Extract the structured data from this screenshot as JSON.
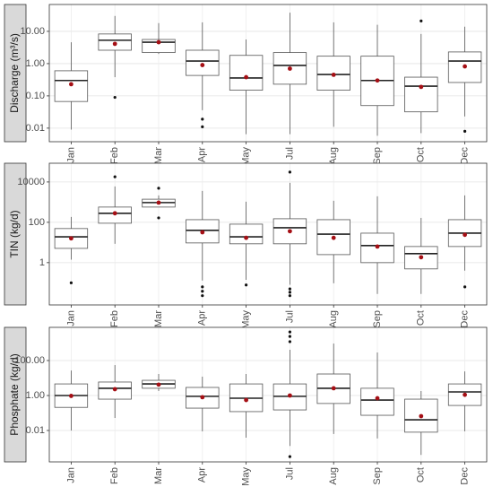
{
  "chart_data": [
    {
      "type": "box",
      "y_label": "Discharge (m³/s)",
      "log_scale": true,
      "grid": true,
      "box_color": "#555555",
      "mean_color": "#a50f15",
      "ylim": [
        0.0038,
        68
      ],
      "yticks": [
        0.01,
        {
          "value": 0.1,
          "label": "0.10"
        },
        {
          "value": 1,
          "label": "1.00"
        },
        {
          "value": 10,
          "label": "10.00"
        }
      ],
      "categories": [
        "Jan",
        "Feb",
        "Mar",
        "Apr",
        "May",
        "Jul",
        "Aug",
        "Sep",
        "Oct",
        "Dec"
      ],
      "boxes": [
        {
          "whislo": 0.009,
          "q1": 0.067,
          "med": 0.3,
          "q3": 0.6,
          "whishi": 4.6,
          "mean": 0.23
        },
        {
          "whislo": 0.38,
          "q1": 2.6,
          "med": 5.3,
          "q3": 8.3,
          "whishi": 30,
          "mean": 4.1,
          "fliers": [
            0.09
          ]
        },
        {
          "whislo": 2,
          "q1": 2.2,
          "med": 4.6,
          "q3": 5.6,
          "whishi": 18,
          "mean": 4.6
        },
        {
          "whislo": 0.036,
          "q1": 0.43,
          "med": 1.2,
          "q3": 2.6,
          "whishi": 19,
          "mean": 0.9,
          "fliers": [
            0.019,
            0.011
          ]
        },
        {
          "whislo": 0.0065,
          "q1": 0.15,
          "med": 0.36,
          "q3": 1.8,
          "whishi": 5.6,
          "mean": 0.38
        },
        {
          "whislo": 0.0065,
          "q1": 0.23,
          "med": 0.88,
          "q3": 2.2,
          "whishi": 38,
          "mean": 0.7
        },
        {
          "whislo": 0.011,
          "q1": 0.15,
          "med": 0.46,
          "q3": 1.7,
          "whishi": 19,
          "mean": 0.45
        },
        {
          "whislo": 0.0058,
          "q1": 0.05,
          "med": 0.3,
          "q3": 1.7,
          "whishi": 16,
          "mean": 0.3
        },
        {
          "whislo": 0.007,
          "q1": 0.032,
          "med": 0.2,
          "q3": 0.38,
          "whishi": 8.3,
          "mean": 0.19,
          "fliers": [
            21
          ]
        },
        {
          "whislo": 0.023,
          "q1": 0.26,
          "med": 1.2,
          "q3": 2.3,
          "whishi": 14,
          "mean": 0.82,
          "fliers": [
            0.008
          ]
        }
      ]
    },
    {
      "type": "box",
      "y_label": "TIN (kg/d)",
      "log_scale": true,
      "grid": true,
      "box_color": "#555555",
      "mean_color": "#a50f15",
      "ylim": [
        0.008,
        85000
      ],
      "yticks": [
        1,
        100,
        10000
      ],
      "categories": [
        "Jan",
        "Feb",
        "Mar",
        "Apr",
        "May",
        "Jul",
        "Aug",
        "Sep",
        "Oct",
        "Dec"
      ],
      "boxes": [
        {
          "whislo": 1.4,
          "q1": 5.1,
          "med": 19,
          "q3": 49,
          "whishi": 185,
          "mean": 16,
          "fliers": [
            0.1
          ]
        },
        {
          "whislo": 8.6,
          "q1": 90,
          "med": 280,
          "q3": 570,
          "whishi": 6000,
          "mean": 280,
          "fliers": [
            18000
          ]
        },
        {
          "whislo": 570,
          "q1": 570,
          "med": 950,
          "q3": 1400,
          "whishi": 2150,
          "mean": 950,
          "fliers": [
            4900,
            166
          ]
        },
        {
          "whislo": 0.13,
          "q1": 9.5,
          "med": 40,
          "q3": 135,
          "whishi": 3600,
          "mean": 32,
          "fliers": [
            0.063,
            0.038,
            0.023
          ]
        },
        {
          "whislo": 0.14,
          "q1": 8.6,
          "med": 19,
          "q3": 81,
          "whishi": 1050,
          "mean": 17,
          "fliers": [
            0.078
          ]
        },
        {
          "whislo": 0.08,
          "q1": 8.6,
          "med": 54,
          "q3": 150,
          "whishi": 9100,
          "mean": 36,
          "fliers": [
            31000,
            0.05,
            0.034,
            0.023
          ]
        },
        {
          "whislo": 0.095,
          "q1": 2.5,
          "med": 26,
          "q3": 135,
          "whishi": 1170,
          "mean": 17
        },
        {
          "whislo": 0.028,
          "q1": 1,
          "med": 7,
          "q3": 29,
          "whishi": 1950,
          "mean": 6.3
        },
        {
          "whislo": 0.028,
          "q1": 0.49,
          "med": 2.8,
          "q3": 6.3,
          "whishi": 166,
          "mean": 1.85
        },
        {
          "whislo": 0.4,
          "q1": 6.3,
          "med": 29,
          "q3": 135,
          "whishi": 2150,
          "mean": 24,
          "fliers": [
            0.063
          ]
        }
      ]
    },
    {
      "type": "box",
      "y_label": "Phosphate (kg/d)",
      "log_scale": true,
      "grid": true,
      "box_color": "#555555",
      "mean_color": "#a50f15",
      "ylim": [
        0.00016,
        7900
      ],
      "yticks": [
        0.01,
        {
          "value": 1,
          "label": "1.00"
        },
        {
          "value": 100,
          "label": "100.00"
        }
      ],
      "categories": [
        "Jan",
        "Feb",
        "Mar",
        "Apr",
        "May",
        "Jul",
        "Aug",
        "Sep",
        "Oct",
        "Dec"
      ],
      "boxes": [
        {
          "whislo": 0.01,
          "q1": 0.21,
          "med": 1,
          "q3": 4.6,
          "whishi": 27,
          "mean": 0.95
        },
        {
          "whislo": 0.052,
          "q1": 0.62,
          "med": 2.6,
          "q3": 5.9,
          "whishi": 55,
          "mean": 2.3
        },
        {
          "whislo": 1.8,
          "q1": 2.6,
          "med": 4.6,
          "q3": 7.4,
          "whishi": 17,
          "mean": 4.2
        },
        {
          "whislo": 0.009,
          "q1": 0.19,
          "med": 0.9,
          "q3": 2.9,
          "whishi": 12,
          "mean": 0.8
        },
        {
          "whislo": 0.0039,
          "q1": 0.12,
          "med": 0.7,
          "q3": 4.6,
          "whishi": 17,
          "mean": 0.55
        },
        {
          "whislo": 0.0013,
          "q1": 0.15,
          "med": 0.9,
          "q3": 4.6,
          "whishi": 410,
          "mean": 1,
          "fliers": [
            2400,
            4300,
            1200,
            0.00032
          ]
        },
        {
          "whislo": 0.0063,
          "q1": 0.35,
          "med": 2.6,
          "q3": 17,
          "whishi": 940,
          "mean": 2.6
        },
        {
          "whislo": 0.0035,
          "q1": 0.074,
          "med": 0.55,
          "q3": 2.6,
          "whishi": 290,
          "mean": 0.7
        },
        {
          "whislo": 0.0004,
          "q1": 0.008,
          "med": 0.041,
          "q3": 0.62,
          "whishi": 1.8,
          "mean": 0.066
        },
        {
          "whislo": 0.009,
          "q1": 0.27,
          "med": 1.6,
          "q3": 4.6,
          "whishi": 24,
          "mean": 1.1
        }
      ]
    }
  ]
}
